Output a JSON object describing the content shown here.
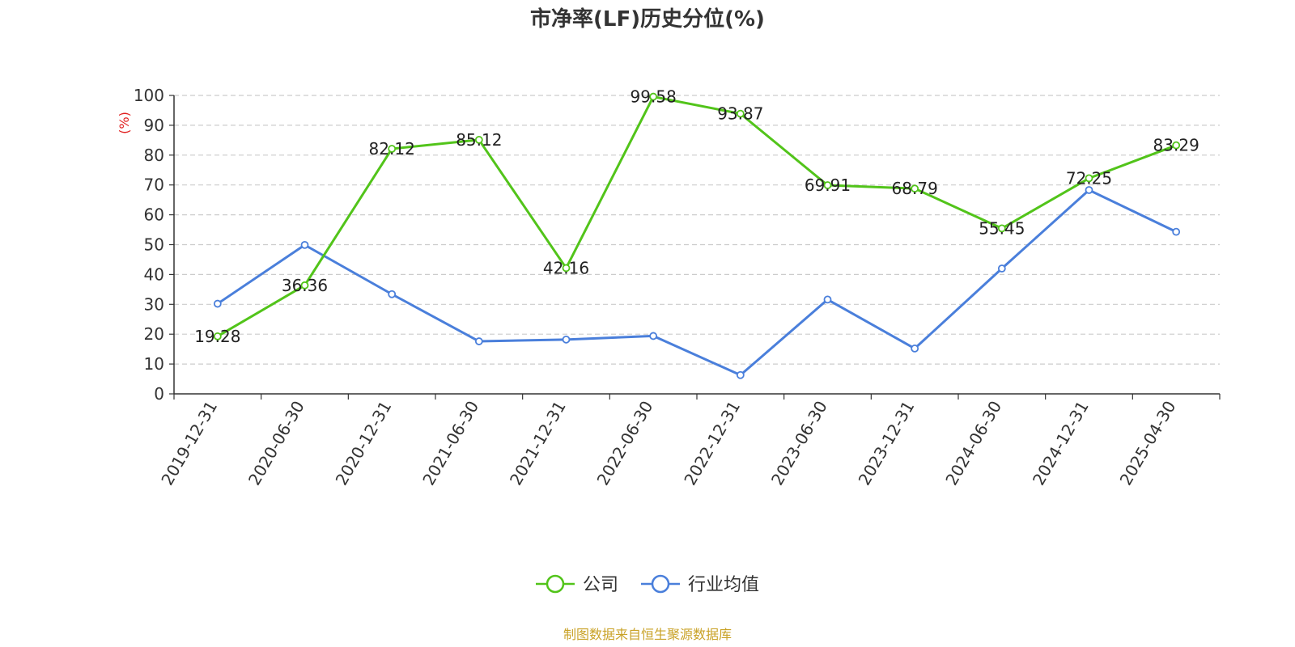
{
  "chart_data": {
    "type": "line",
    "title": "市净率(LF)历史分位(%)",
    "ylabel": "(%)",
    "xlabel": "",
    "ylim": [
      0,
      100
    ],
    "yticks": [
      0,
      10,
      20,
      30,
      40,
      50,
      60,
      70,
      80,
      90,
      100
    ],
    "grid": true,
    "legend_position": "bottom-center",
    "categories": [
      "2019-12-31",
      "2020-06-30",
      "2020-12-31",
      "2021-06-30",
      "2021-12-31",
      "2022-06-30",
      "2022-12-31",
      "2023-06-30",
      "2023-12-31",
      "2024-06-30",
      "2024-12-31",
      "2025-04-30"
    ],
    "series": [
      {
        "name": "公司",
        "color": "#52c41a",
        "show_labels": true,
        "values": [
          19.28,
          36.36,
          82.12,
          85.12,
          42.16,
          99.58,
          93.87,
          69.91,
          68.79,
          55.45,
          72.25,
          83.29
        ]
      },
      {
        "name": "行业均值",
        "color": "#4a7fdb",
        "show_labels": false,
        "values": [
          30.2,
          49.9,
          33.4,
          17.6,
          18.2,
          19.4,
          6.3,
          31.6,
          15.2,
          42.0,
          68.3,
          54.3
        ]
      }
    ],
    "source": "制图数据来自恒生聚源数据库",
    "source_color": "#c9a227",
    "ylabel_color": "#e02020"
  }
}
